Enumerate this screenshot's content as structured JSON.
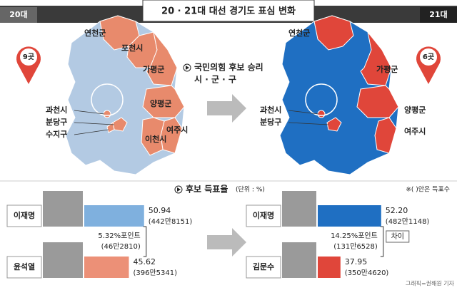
{
  "header": {
    "title": "20 · 21대 대선 경기도 표심 변화",
    "left_tag": "20대",
    "right_tag": "21대"
  },
  "legend": {
    "line1": "국민의힘 후보 승리",
    "line2": "시 · 군 · 구"
  },
  "left_map": {
    "pin": "9곳",
    "labels": [
      "연천군",
      "포천시",
      "가평군",
      "양평군",
      "여주시",
      "이천시",
      "과천시",
      "분당구",
      "수지구"
    ]
  },
  "right_map": {
    "pin": "6곳",
    "labels": [
      "연천군",
      "가평군",
      "양평군",
      "여주시",
      "과천시",
      "분당구"
    ]
  },
  "section": {
    "title": "후보 득표율",
    "unit": "(단위 : %)",
    "note": "※( )안은 득표수"
  },
  "left_panel": {
    "candidates": [
      {
        "name": "이재명",
        "value": 50.94,
        "label": "50.94",
        "votes": "(442만8151)"
      },
      {
        "name": "윤석열",
        "value": 45.62,
        "label": "45.62",
        "votes": "(396만5341)"
      }
    ],
    "gap": "5.32%포인트",
    "gap_votes": "(46만2810)"
  },
  "right_panel": {
    "candidates": [
      {
        "name": "이재명",
        "value": 52.2,
        "label": "52.20",
        "votes": "(482만1148)"
      },
      {
        "name": "김문수",
        "value": 37.95,
        "label": "37.95",
        "votes": "(350만4620)"
      }
    ],
    "gap": "14.25%포인트",
    "gap_votes": "(131만6528)",
    "gap_tag": "차이"
  },
  "credit": "그래픽=권해원 기자"
}
